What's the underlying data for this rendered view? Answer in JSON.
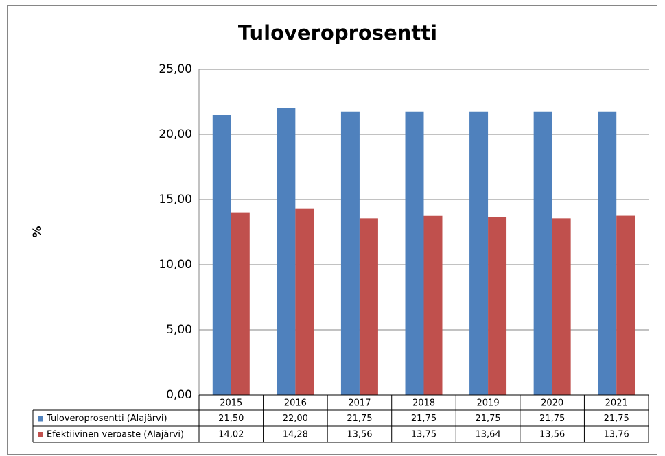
{
  "chart_data": {
    "type": "bar",
    "title": "Tuloveroprosentti",
    "y_label": "%",
    "categories": [
      "2015",
      "2016",
      "2017",
      "2018",
      "2019",
      "2020",
      "2021"
    ],
    "series": [
      {
        "name": "Tuloveroprosentti (Alajärvi)",
        "color": "#4f81bd",
        "values": [
          21.5,
          22.0,
          21.75,
          21.75,
          21.75,
          21.75,
          21.75
        ],
        "value_labels": [
          "21,50",
          "22,00",
          "21,75",
          "21,75",
          "21,75",
          "21,75",
          "21,75"
        ]
      },
      {
        "name": "Efektiivinen veroaste (Alajärvi)",
        "color": "#c0504d",
        "values": [
          14.02,
          14.28,
          13.56,
          13.75,
          13.64,
          13.56,
          13.76
        ],
        "value_labels": [
          "14,02",
          "14,28",
          "13,56",
          "13,75",
          "13,64",
          "13,56",
          "13,76"
        ]
      }
    ],
    "ylim": [
      0,
      25
    ],
    "yticks": [
      {
        "value": 0,
        "label": "0,00"
      },
      {
        "value": 5,
        "label": "5,00"
      },
      {
        "value": 10,
        "label": "10,00"
      },
      {
        "value": 15,
        "label": "15,00"
      },
      {
        "value": 20,
        "label": "20,00"
      },
      {
        "value": 25,
        "label": "25,00"
      }
    ],
    "grid": true
  }
}
